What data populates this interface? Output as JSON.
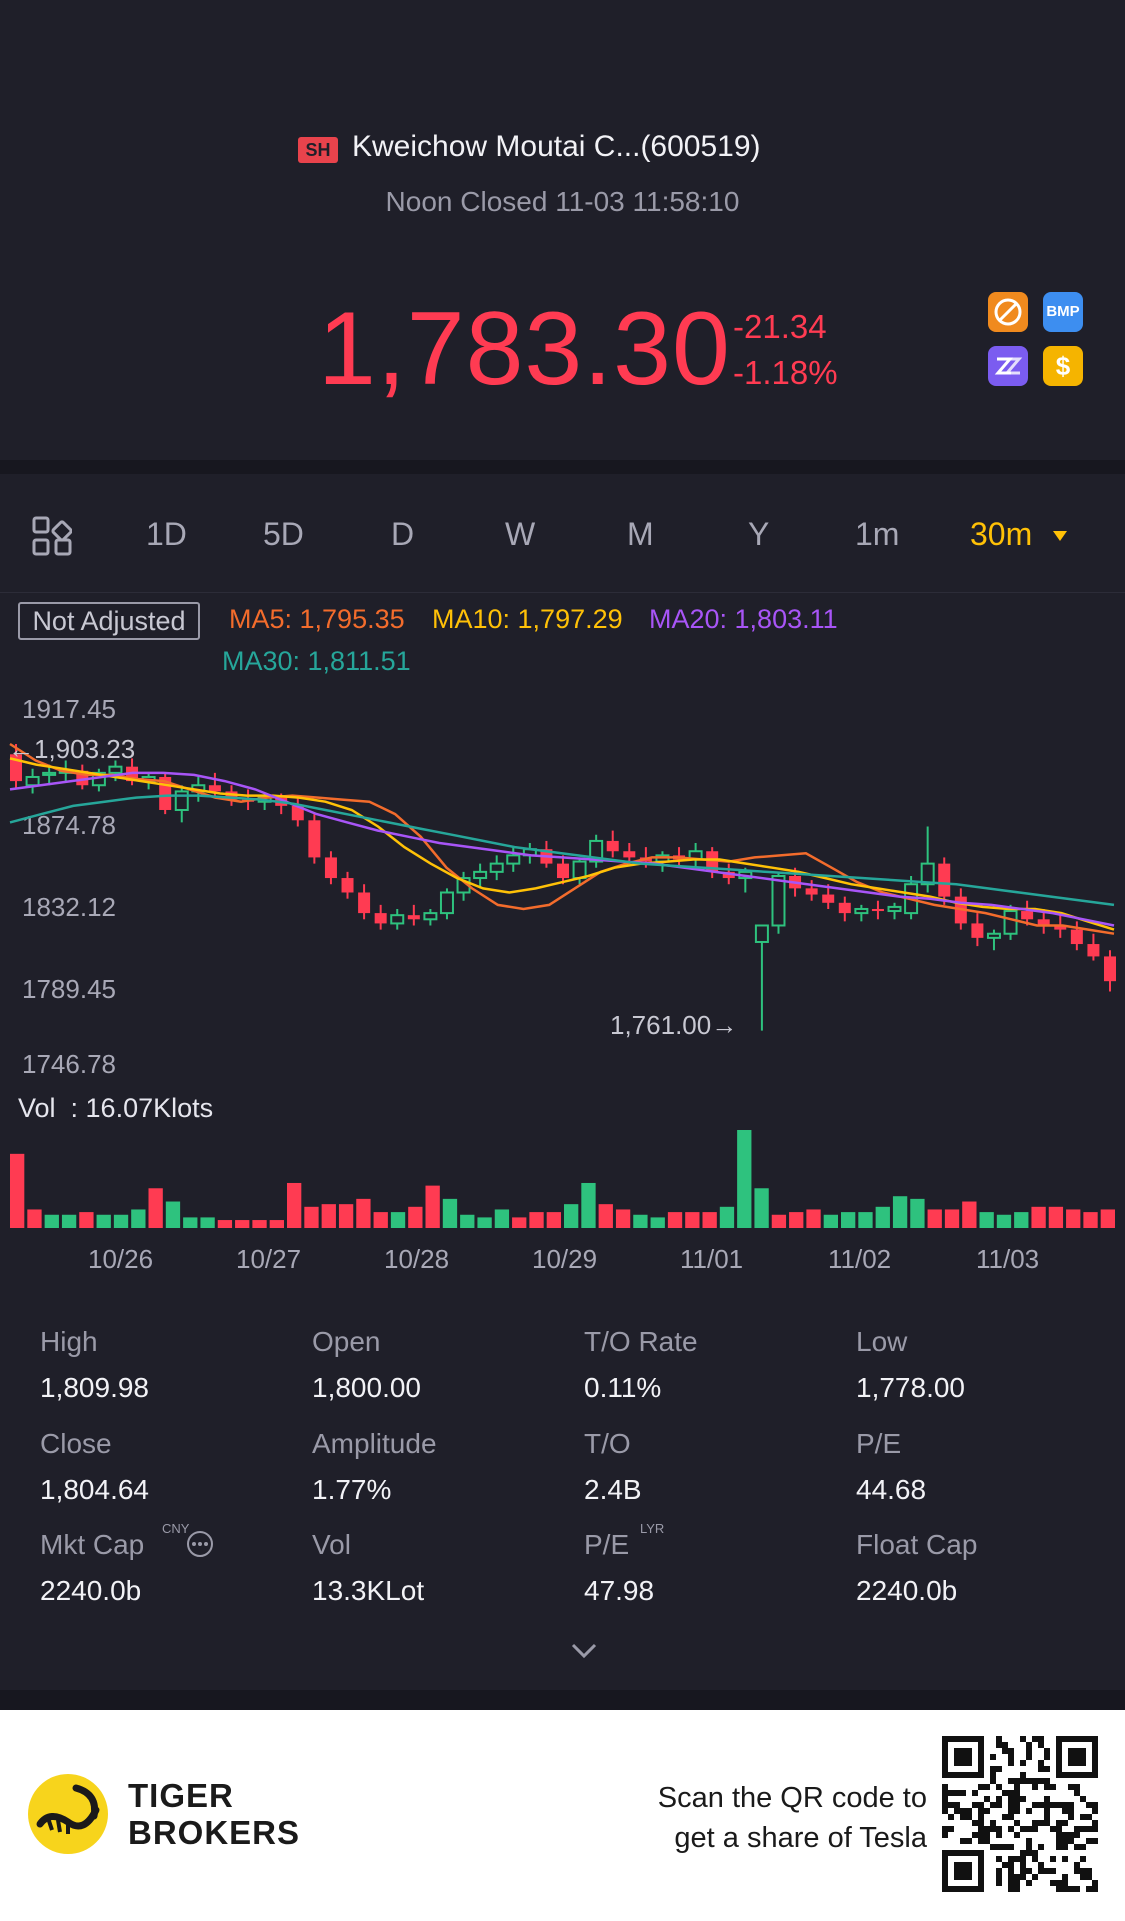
{
  "header": {
    "exchange": "SH",
    "stock_name": "Kweichow Moutai C...(600519)",
    "status": "Noon Closed 11-03 11:58:10",
    "price": "1,783.30",
    "change": "-21.34",
    "change_pct": "-1.18%",
    "icons": [
      "no-ads-icon",
      "bmp-icon",
      "zz-icon",
      "dollar-icon"
    ],
    "bmp_label": "BMP",
    "dollar_label": "$",
    "colors": {
      "down": "#ff3b52",
      "up": "#2ec27e",
      "accent": "#ffc107"
    }
  },
  "tabs": {
    "items": [
      {
        "label": "1D"
      },
      {
        "label": "5D"
      },
      {
        "label": "D"
      },
      {
        "label": "W"
      },
      {
        "label": "M"
      },
      {
        "label": "Y"
      },
      {
        "label": "1m"
      },
      {
        "label": "30m"
      }
    ],
    "active": "30m"
  },
  "chart": {
    "adjust_label": "Not Adjusted",
    "ma5": "MA5: 1,795.35",
    "ma10": "MA10: 1,797.29",
    "ma20": "MA20: 1,803.11",
    "ma30": "MA30: 1,811.51",
    "y_ticks": [
      "1917.45",
      "1874.78",
      "1832.12",
      "1789.45",
      "1746.78"
    ],
    "max_label": "1,903.23",
    "min_label": "1,761.00",
    "vol_label": "Vol  : 16.07Klots",
    "x_ticks": [
      "10/26",
      "10/27",
      "10/28",
      "10/29",
      "11/01",
      "11/02",
      "11/03"
    ]
  },
  "chart_data": {
    "type": "candlestick",
    "ylim": [
      1746.78,
      1917.45
    ],
    "candles": [
      [
        1895,
        1900,
        1878,
        1882
      ],
      [
        1880,
        1888,
        1876,
        1884
      ],
      [
        1885,
        1890,
        1880,
        1886
      ],
      [
        1886,
        1892,
        1882,
        1887
      ],
      [
        1887,
        1890,
        1878,
        1880
      ],
      [
        1880,
        1888,
        1877,
        1886
      ],
      [
        1886,
        1892,
        1882,
        1889
      ],
      [
        1889,
        1893,
        1880,
        1882
      ],
      [
        1882,
        1886,
        1878,
        1884
      ],
      [
        1884,
        1886,
        1866,
        1868
      ],
      [
        1868,
        1880,
        1862,
        1877
      ],
      [
        1877,
        1884,
        1872,
        1880
      ],
      [
        1880,
        1886,
        1874,
        1877
      ],
      [
        1877,
        1880,
        1870,
        1873
      ],
      [
        1873,
        1878,
        1868,
        1872
      ],
      [
        1872,
        1876,
        1868,
        1874
      ],
      [
        1874,
        1876,
        1866,
        1870
      ],
      [
        1870,
        1874,
        1860,
        1863
      ],
      [
        1863,
        1866,
        1842,
        1845
      ],
      [
        1845,
        1848,
        1832,
        1835
      ],
      [
        1835,
        1838,
        1825,
        1828
      ],
      [
        1828,
        1832,
        1815,
        1818
      ],
      [
        1818,
        1822,
        1810,
        1813
      ],
      [
        1813,
        1820,
        1810,
        1817
      ],
      [
        1817,
        1822,
        1812,
        1815
      ],
      [
        1815,
        1820,
        1812,
        1818
      ],
      [
        1818,
        1830,
        1815,
        1828
      ],
      [
        1828,
        1838,
        1824,
        1835
      ],
      [
        1835,
        1842,
        1830,
        1838
      ],
      [
        1838,
        1846,
        1834,
        1842
      ],
      [
        1842,
        1850,
        1838,
        1846
      ],
      [
        1846,
        1852,
        1842,
        1849
      ],
      [
        1849,
        1853,
        1840,
        1842
      ],
      [
        1842,
        1846,
        1832,
        1835
      ],
      [
        1835,
        1845,
        1832,
        1843
      ],
      [
        1843,
        1856,
        1840,
        1853
      ],
      [
        1853,
        1858,
        1845,
        1848
      ],
      [
        1848,
        1852,
        1843,
        1845
      ],
      [
        1845,
        1850,
        1840,
        1843
      ],
      [
        1843,
        1848,
        1838,
        1846
      ],
      [
        1846,
        1850,
        1840,
        1844
      ],
      [
        1844,
        1852,
        1840,
        1848
      ],
      [
        1848,
        1850,
        1835,
        1838
      ],
      [
        1838,
        1842,
        1832,
        1835
      ],
      [
        1835,
        1840,
        1828,
        1838
      ],
      [
        1804,
        1812,
        1761,
        1812
      ],
      [
        1812,
        1838,
        1808,
        1836
      ],
      [
        1836,
        1840,
        1826,
        1830
      ],
      [
        1830,
        1834,
        1824,
        1827
      ],
      [
        1827,
        1832,
        1820,
        1823
      ],
      [
        1823,
        1826,
        1814,
        1818
      ],
      [
        1818,
        1822,
        1814,
        1820
      ],
      [
        1820,
        1824,
        1815,
        1819
      ],
      [
        1819,
        1823,
        1815,
        1821
      ],
      [
        1818,
        1836,
        1815,
        1832
      ],
      [
        1832,
        1860,
        1828,
        1842
      ],
      [
        1842,
        1845,
        1822,
        1826
      ],
      [
        1826,
        1830,
        1810,
        1813
      ],
      [
        1813,
        1818,
        1802,
        1806
      ],
      [
        1806,
        1810,
        1800,
        1808
      ],
      [
        1808,
        1822,
        1805,
        1819
      ],
      [
        1819,
        1824,
        1812,
        1815
      ],
      [
        1815,
        1820,
        1808,
        1812
      ],
      [
        1812,
        1818,
        1806,
        1810
      ],
      [
        1810,
        1814,
        1800,
        1803
      ],
      [
        1803,
        1808,
        1795,
        1797
      ],
      [
        1797,
        1800,
        1780,
        1785
      ]
    ],
    "ma_lines": {
      "MA5": [
        1900,
        1892,
        1887,
        1885,
        1885,
        1883,
        1882,
        1878,
        1874,
        1872,
        1874,
        1875,
        1874,
        1873,
        1872,
        1866,
        1855,
        1840,
        1830,
        1822,
        1820,
        1822,
        1830,
        1838,
        1842,
        1845,
        1845,
        1844,
        1843,
        1845,
        1846,
        1847,
        1840,
        1833,
        1828,
        1825,
        1822,
        1820,
        1818,
        1815,
        1812,
        1812,
        1810,
        1808
      ],
      "MA10": [
        1893,
        1890,
        1888,
        1886,
        1884,
        1882,
        1880,
        1878,
        1876,
        1875,
        1875,
        1874,
        1872,
        1868,
        1860,
        1850,
        1842,
        1835,
        1830,
        1828,
        1830,
        1833,
        1836,
        1840,
        1842,
        1843,
        1844,
        1844,
        1842,
        1840,
        1838,
        1835,
        1832,
        1830,
        1828,
        1826,
        1823,
        1821,
        1820,
        1820,
        1818,
        1814,
        1810
      ],
      "MA20": [
        1878,
        1880,
        1882,
        1884,
        1886,
        1886,
        1885,
        1882,
        1878,
        1872,
        1866,
        1862,
        1858,
        1855,
        1852,
        1850,
        1848,
        1846,
        1845,
        1844,
        1843,
        1842,
        1840,
        1838,
        1836,
        1834,
        1832,
        1830,
        1828,
        1826,
        1825,
        1823,
        1822,
        1820,
        1818,
        1815,
        1812
      ],
      "MA30": [
        1862,
        1866,
        1870,
        1872,
        1874,
        1875,
        1875,
        1874,
        1873,
        1871,
        1868,
        1865,
        1862,
        1859,
        1856,
        1853,
        1850,
        1848,
        1846,
        1844,
        1842,
        1841,
        1840,
        1839,
        1838,
        1837,
        1836,
        1835,
        1834,
        1833,
        1832,
        1830,
        1828,
        1826,
        1824,
        1822
      ]
    },
    "volume": [
      [
        2.8,
        "d"
      ],
      [
        0.7,
        "d"
      ],
      [
        0.5,
        "u"
      ],
      [
        0.5,
        "u"
      ],
      [
        0.6,
        "d"
      ],
      [
        0.5,
        "u"
      ],
      [
        0.5,
        "u"
      ],
      [
        0.7,
        "u"
      ],
      [
        1.5,
        "d"
      ],
      [
        1.0,
        "u"
      ],
      [
        0.4,
        "u"
      ],
      [
        0.4,
        "u"
      ],
      [
        0.3,
        "d"
      ],
      [
        0.3,
        "d"
      ],
      [
        0.3,
        "d"
      ],
      [
        0.3,
        "d"
      ],
      [
        1.7,
        "d"
      ],
      [
        0.8,
        "d"
      ],
      [
        0.9,
        "d"
      ],
      [
        0.9,
        "d"
      ],
      [
        1.1,
        "d"
      ],
      [
        0.6,
        "d"
      ],
      [
        0.6,
        "u"
      ],
      [
        0.8,
        "d"
      ],
      [
        1.6,
        "d"
      ],
      [
        1.1,
        "u"
      ],
      [
        0.5,
        "u"
      ],
      [
        0.4,
        "u"
      ],
      [
        0.7,
        "u"
      ],
      [
        0.4,
        "d"
      ],
      [
        0.6,
        "d"
      ],
      [
        0.6,
        "d"
      ],
      [
        0.9,
        "u"
      ],
      [
        1.7,
        "u"
      ],
      [
        0.9,
        "d"
      ],
      [
        0.7,
        "d"
      ],
      [
        0.5,
        "u"
      ],
      [
        0.4,
        "u"
      ],
      [
        0.6,
        "d"
      ],
      [
        0.6,
        "d"
      ],
      [
        0.6,
        "d"
      ],
      [
        0.8,
        "u"
      ],
      [
        3.7,
        "u"
      ],
      [
        1.5,
        "u"
      ],
      [
        0.5,
        "d"
      ],
      [
        0.6,
        "d"
      ],
      [
        0.7,
        "d"
      ],
      [
        0.5,
        "u"
      ],
      [
        0.6,
        "u"
      ],
      [
        0.6,
        "u"
      ],
      [
        0.8,
        "u"
      ],
      [
        1.2,
        "u"
      ],
      [
        1.1,
        "u"
      ],
      [
        0.7,
        "d"
      ],
      [
        0.7,
        "d"
      ],
      [
        1.0,
        "d"
      ],
      [
        0.6,
        "u"
      ],
      [
        0.5,
        "u"
      ],
      [
        0.6,
        "u"
      ],
      [
        0.8,
        "d"
      ],
      [
        0.8,
        "d"
      ],
      [
        0.7,
        "d"
      ],
      [
        0.6,
        "d"
      ],
      [
        0.7,
        "d"
      ]
    ]
  },
  "stats": [
    {
      "label": "High",
      "value": "1,809.98"
    },
    {
      "label": "Open",
      "value": "1,800.00"
    },
    {
      "label": "T/O Rate",
      "value": "0.11%"
    },
    {
      "label": "Low",
      "value": "1,778.00"
    },
    {
      "label": "Close",
      "value": "1,804.64"
    },
    {
      "label": "Amplitude",
      "value": "1.77%"
    },
    {
      "label": "T/O",
      "value": "2.4B"
    },
    {
      "label": "P/E",
      "value": "44.68"
    },
    {
      "label": "Mkt Cap",
      "value": "2240.0b",
      "sup": "CNY"
    },
    {
      "label": "Vol",
      "value": "13.3KLot"
    },
    {
      "label": "P/E",
      "value": "47.98",
      "sup": "LYR"
    },
    {
      "label": "Float Cap",
      "value": "2240.0b"
    }
  ],
  "footer": {
    "brand_line1": "TIGER",
    "brand_line2": "BROKERS",
    "promo_line1": "Scan the QR code to",
    "promo_line2": "get a share of Tesla"
  }
}
